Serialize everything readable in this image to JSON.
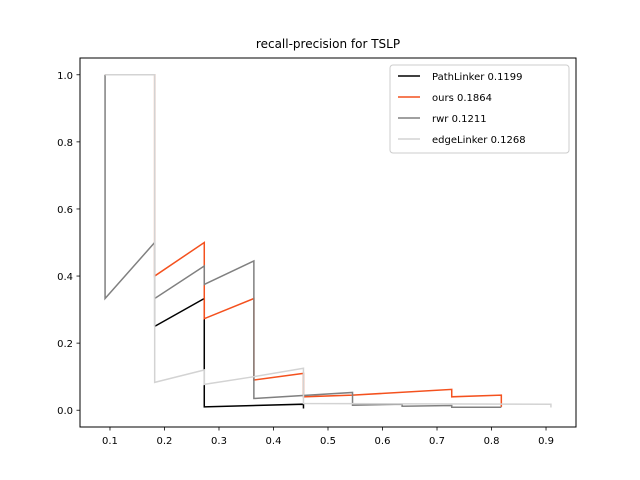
{
  "chart_data": {
    "type": "line",
    "title": "recall-precision for TSLP",
    "xlabel": "",
    "ylabel": "",
    "xlim": [
      0.045,
      0.955
    ],
    "ylim": [
      -0.05,
      1.05
    ],
    "x_ticks": [
      0.1,
      0.2,
      0.3,
      0.4,
      0.5,
      0.6,
      0.7,
      0.8,
      0.9
    ],
    "x_tick_labels": [
      "0.1",
      "0.2",
      "0.3",
      "0.4",
      "0.5",
      "0.6",
      "0.7",
      "0.8",
      "0.9"
    ],
    "y_ticks": [
      0.0,
      0.2,
      0.4,
      0.6,
      0.8,
      1.0
    ],
    "y_tick_labels": [
      "0.0",
      "0.2",
      "0.4",
      "0.6",
      "0.8",
      "1.0"
    ],
    "grid": false,
    "legend_position": "top-right",
    "series": [
      {
        "name": "PathLinker 0.1199",
        "color": "#000000",
        "points": [
          [
            0.182,
            0.25
          ],
          [
            0.273,
            0.333
          ],
          [
            0.273,
            0.01
          ],
          [
            0.455,
            0.018
          ],
          [
            0.455,
            0.005
          ]
        ]
      },
      {
        "name": "ours 0.1864",
        "color": "#f4511e",
        "points": [
          [
            0.091,
            1.0
          ],
          [
            0.182,
            1.0
          ],
          [
            0.182,
            0.4
          ],
          [
            0.273,
            0.5
          ],
          [
            0.273,
            0.273
          ],
          [
            0.364,
            0.333
          ],
          [
            0.364,
            0.09
          ],
          [
            0.455,
            0.11
          ],
          [
            0.455,
            0.04
          ],
          [
            0.545,
            0.045
          ],
          [
            0.545,
            0.045
          ],
          [
            0.727,
            0.062
          ],
          [
            0.727,
            0.04
          ],
          [
            0.818,
            0.045
          ],
          [
            0.818,
            0.01
          ]
        ]
      },
      {
        "name": "rwr 0.1211",
        "color": "#808080",
        "points": [
          [
            0.091,
            1.0
          ],
          [
            0.091,
            0.333
          ],
          [
            0.182,
            0.5
          ],
          [
            0.182,
            0.25
          ],
          [
            0.182,
            0.333
          ],
          [
            0.273,
            0.43
          ],
          [
            0.273,
            0.375
          ],
          [
            0.364,
            0.445
          ],
          [
            0.364,
            0.035
          ],
          [
            0.545,
            0.053
          ],
          [
            0.545,
            0.015
          ],
          [
            0.636,
            0.018
          ],
          [
            0.636,
            0.012
          ],
          [
            0.727,
            0.014
          ],
          [
            0.727,
            0.009
          ],
          [
            0.818,
            0.009
          ]
        ]
      },
      {
        "name": "edgeLinker 0.1268",
        "color": "#d3d3d3",
        "points": [
          [
            0.091,
            1.0
          ],
          [
            0.182,
            1.0
          ],
          [
            0.182,
            0.083
          ],
          [
            0.273,
            0.12
          ],
          [
            0.273,
            0.077
          ],
          [
            0.364,
            0.1
          ],
          [
            0.364,
            0.1
          ],
          [
            0.455,
            0.125
          ],
          [
            0.455,
            0.02
          ],
          [
            0.909,
            0.018
          ],
          [
            0.909,
            0.008
          ]
        ]
      }
    ]
  }
}
